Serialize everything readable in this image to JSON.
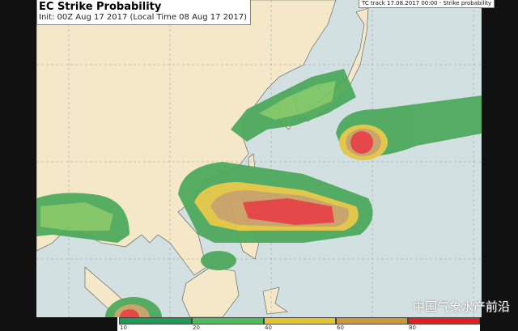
{
  "header": {
    "title": "EC Strike Probability",
    "subtitle": "Init: 00Z Aug 17 2017 (Local Time 08 Aug 17 2017)"
  },
  "legend_box": {
    "text": "TC track 17.08.2017 00:00 - Strike probability"
  },
  "colorbar": {
    "ticks": [
      "10",
      "20",
      "40",
      "60",
      "80"
    ],
    "colors": [
      "#1f9a55",
      "#4cbb5a",
      "#e2c431",
      "#c99a3c",
      "#e02020"
    ]
  },
  "colors": {
    "ocean": "#d3e0e1",
    "land": "#f4e8c9",
    "level1": "#4aa85a",
    "level2": "#7cc561",
    "level3": "#e3c740",
    "level4": "#c9a064",
    "level5": "#e63c3c"
  },
  "watermark": "中国气象水产前沿"
}
